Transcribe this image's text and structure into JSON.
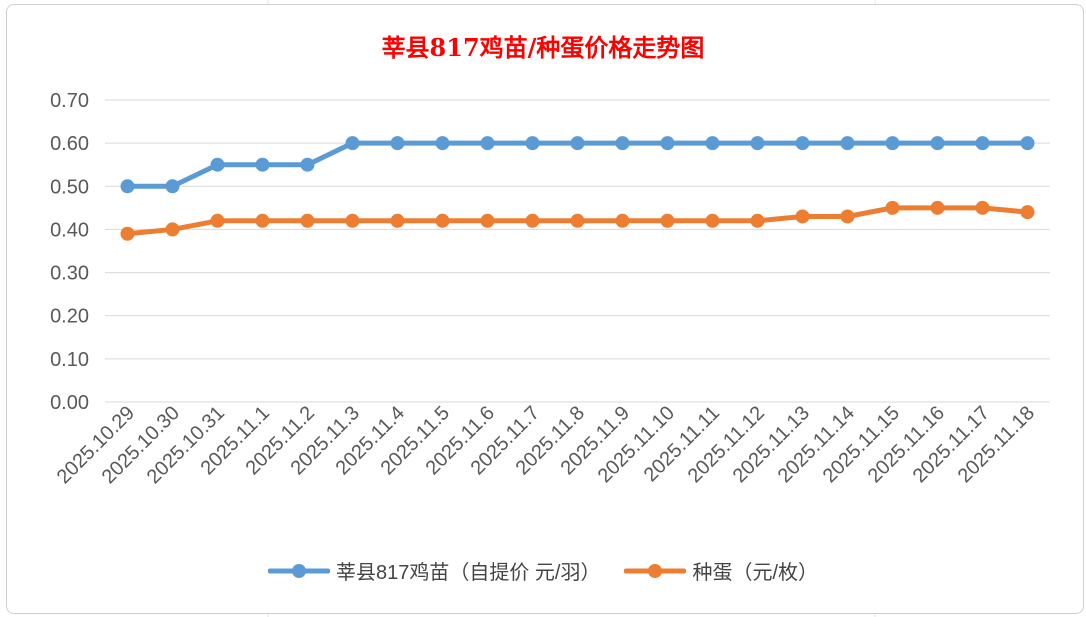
{
  "colors": {
    "series_1": "#5b9bd5",
    "series_2": "#ed7d31",
    "grid": "#d9d9d9",
    "title": "#ff0000",
    "text": "#595959"
  },
  "chart_data": {
    "type": "line",
    "title": "莘县817鸡苗/种蛋价格走势图",
    "xlabel": "",
    "ylabel": "",
    "ylim": [
      0,
      0.7
    ],
    "y_ticks": [
      "0.00",
      "0.10",
      "0.20",
      "0.30",
      "0.40",
      "0.50",
      "0.60",
      "0.70"
    ],
    "grid": true,
    "legend_position": "bottom",
    "categories": [
      "2025.10.29",
      "2025.10.30",
      "2025.10.31",
      "2025.11.1",
      "2025.11.2",
      "2025.11.3",
      "2025.11.4",
      "2025.11.5",
      "2025.11.6",
      "2025.11.7",
      "2025.11.8",
      "2025.11.9",
      "2025.11.10",
      "2025.11.11",
      "2025.11.12",
      "2025.11.13",
      "2025.11.14",
      "2025.11.15",
      "2025.11.16",
      "2025.11.17",
      "2025.11.18"
    ],
    "series": [
      {
        "name": "莘县817鸡苗（自提价 元/羽）",
        "values": [
          0.5,
          0.5,
          0.55,
          0.55,
          0.55,
          0.6,
          0.6,
          0.6,
          0.6,
          0.6,
          0.6,
          0.6,
          0.6,
          0.6,
          0.6,
          0.6,
          0.6,
          0.6,
          0.6,
          0.6,
          0.6
        ]
      },
      {
        "name": "种蛋（元/枚）",
        "values": [
          0.39,
          0.4,
          0.42,
          0.42,
          0.42,
          0.42,
          0.42,
          0.42,
          0.42,
          0.42,
          0.42,
          0.42,
          0.42,
          0.42,
          0.42,
          0.43,
          0.43,
          0.45,
          0.45,
          0.45,
          0.44
        ]
      }
    ]
  }
}
